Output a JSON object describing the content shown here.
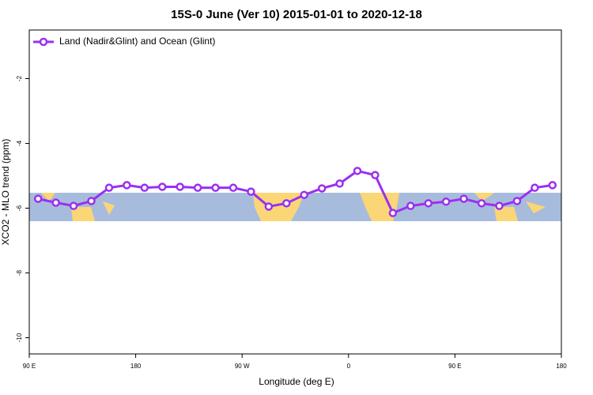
{
  "chart_data": {
    "type": "line",
    "title": "15S-0 June (Ver 10)   2015-01-01 to 2020-12-18",
    "x_label": "Longitude (deg E)",
    "y_label": "XCO2 - MLO trend (ppm)",
    "x": [
      97.5,
      112.5,
      127.5,
      142.5,
      157.5,
      172.5,
      187.5,
      202.5,
      217.5,
      232.5,
      247.5,
      262.5,
      277.5,
      292.5,
      307.5,
      322.5,
      337.5,
      352.5,
      367.5,
      382.5,
      397.5,
      412.5,
      427.5,
      442.5,
      457.5,
      472.5,
      487.5,
      502.5,
      517.5,
      532.5
    ],
    "series": [
      {
        "name": "Land (Nadir&Glint) and Ocean (Glint)",
        "color": "#9b30f0",
        "values": [
          -5.71,
          -5.83,
          -5.93,
          -5.78,
          -5.37,
          -5.29,
          -5.37,
          -5.34,
          -5.34,
          -5.37,
          -5.37,
          -5.37,
          -5.49,
          -5.95,
          -5.85,
          -5.59,
          -5.39,
          -5.24,
          -4.85,
          -4.98,
          -6.15,
          -5.93,
          -5.85,
          -5.8,
          -5.71,
          -5.85,
          -5.93,
          -5.78,
          -5.37,
          -5.29
        ]
      }
    ],
    "xlim": [
      90,
      540
    ],
    "xticks": [
      {
        "value": 90,
        "label": "90 E"
      },
      {
        "value": 180,
        "label": "180"
      },
      {
        "value": 270,
        "label": "90 W"
      },
      {
        "value": 360,
        "label": "0"
      },
      {
        "value": 450,
        "label": "90 E"
      },
      {
        "value": 540,
        "label": "180"
      }
    ],
    "ylim": [
      -10.5,
      -0.5
    ],
    "yticks": [
      -10,
      -8,
      -6,
      -4,
      -2
    ],
    "legend": "top-left"
  }
}
